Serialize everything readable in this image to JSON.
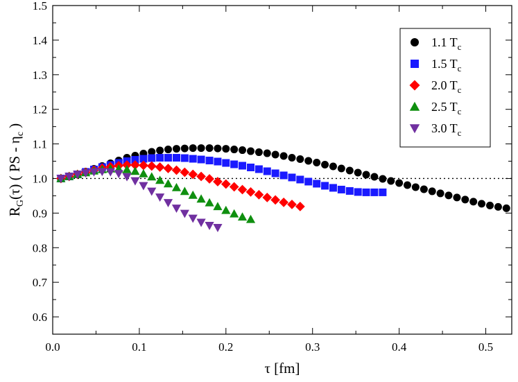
{
  "chart_data": {
    "type": "scatter",
    "title": "",
    "xlabel": "τ [fm]",
    "ylabel_parts": {
      "base": "R",
      "base_sub": "G",
      "mid": "(τ) ( PS - η",
      "mid_sub": "c",
      "end": " )"
    },
    "xlim": [
      0.0,
      0.53
    ],
    "ylim": [
      0.55,
      1.5
    ],
    "xticks": [
      0.0,
      0.1,
      0.2,
      0.3,
      0.4,
      0.5
    ],
    "xtick_labels": [
      "0.0",
      "0.1",
      "0.2",
      "0.3",
      "0.4",
      "0.5"
    ],
    "yticks": [
      0.6,
      0.7,
      0.8,
      0.9,
      1.0,
      1.1,
      1.2,
      1.3,
      1.4,
      1.5
    ],
    "ytick_labels": [
      "0.6",
      "0.7",
      "0.8",
      "0.9",
      "1.0",
      "1.1",
      "1.2",
      "1.3",
      "1.4",
      "1.5"
    ],
    "reference_line": {
      "y": 1.0,
      "style": "dotted"
    },
    "grid": false,
    "legend_position": "top-right",
    "series": [
      {
        "name": "1.1 T",
        "name_sub": "c",
        "marker": "circle",
        "color": "#000000",
        "x": [
          0.0095,
          0.019,
          0.0286,
          0.0381,
          0.0476,
          0.0571,
          0.0667,
          0.0762,
          0.0857,
          0.0952,
          0.1048,
          0.1143,
          0.1238,
          0.1333,
          0.1429,
          0.1524,
          0.1619,
          0.1714,
          0.181,
          0.1905,
          0.2,
          0.2095,
          0.219,
          0.2286,
          0.2381,
          0.2476,
          0.2571,
          0.2667,
          0.2762,
          0.2857,
          0.2952,
          0.3048,
          0.3143,
          0.3238,
          0.3333,
          0.3429,
          0.3524,
          0.3619,
          0.3714,
          0.381,
          0.3905,
          0.4,
          0.4095,
          0.419,
          0.4286,
          0.4381,
          0.4476,
          0.4571,
          0.4667,
          0.4762,
          0.4857,
          0.4952,
          0.5048,
          0.5143,
          0.5238
        ],
        "y": [
          1.0,
          1.006,
          1.012,
          1.02,
          1.028,
          1.036,
          1.044,
          1.052,
          1.06,
          1.066,
          1.072,
          1.077,
          1.081,
          1.084,
          1.086,
          1.087,
          1.088,
          1.088,
          1.088,
          1.087,
          1.086,
          1.084,
          1.082,
          1.079,
          1.076,
          1.073,
          1.069,
          1.065,
          1.06,
          1.056,
          1.051,
          1.046,
          1.04,
          1.035,
          1.029,
          1.023,
          1.017,
          1.011,
          1.005,
          0.999,
          0.993,
          0.987,
          0.981,
          0.975,
          0.969,
          0.963,
          0.957,
          0.951,
          0.945,
          0.939,
          0.933,
          0.927,
          0.922,
          0.918,
          0.914
        ]
      },
      {
        "name": "1.5 T",
        "name_sub": "c",
        "marker": "square",
        "color": "#1a1aff",
        "x": [
          0.0095,
          0.019,
          0.0286,
          0.0381,
          0.0476,
          0.0571,
          0.0667,
          0.0762,
          0.0857,
          0.0952,
          0.1048,
          0.1143,
          0.1238,
          0.1333,
          0.1429,
          0.1524,
          0.1619,
          0.1714,
          0.181,
          0.1905,
          0.2,
          0.2095,
          0.219,
          0.2286,
          0.2381,
          0.2476,
          0.2571,
          0.2667,
          0.2762,
          0.2857,
          0.2952,
          0.3048,
          0.3143,
          0.3238,
          0.3333,
          0.3429,
          0.3524,
          0.3619,
          0.3714,
          0.381
        ],
        "y": [
          1.0,
          1.006,
          1.012,
          1.019,
          1.026,
          1.033,
          1.039,
          1.045,
          1.05,
          1.054,
          1.057,
          1.059,
          1.06,
          1.06,
          1.06,
          1.059,
          1.057,
          1.055,
          1.052,
          1.049,
          1.045,
          1.041,
          1.037,
          1.032,
          1.027,
          1.021,
          1.015,
          1.009,
          1.003,
          0.997,
          0.991,
          0.985,
          0.979,
          0.973,
          0.968,
          0.964,
          0.961,
          0.96,
          0.96,
          0.96
        ]
      },
      {
        "name": "2.0 T",
        "name_sub": "c",
        "marker": "diamond",
        "color": "#ff0000",
        "x": [
          0.0095,
          0.019,
          0.0286,
          0.0381,
          0.0476,
          0.0571,
          0.0667,
          0.0762,
          0.0857,
          0.0952,
          0.1048,
          0.1143,
          0.1238,
          0.1333,
          0.1429,
          0.1524,
          0.1619,
          0.1714,
          0.181,
          0.1905,
          0.2,
          0.2095,
          0.219,
          0.2286,
          0.2381,
          0.2476,
          0.2571,
          0.2667,
          0.2762,
          0.2857
        ],
        "y": [
          1.0,
          1.006,
          1.012,
          1.018,
          1.024,
          1.03,
          1.034,
          1.037,
          1.039,
          1.039,
          1.038,
          1.036,
          1.033,
          1.029,
          1.024,
          1.018,
          1.012,
          1.006,
          0.999,
          0.991,
          0.984,
          0.976,
          0.968,
          0.961,
          0.953,
          0.945,
          0.938,
          0.931,
          0.925,
          0.919
        ]
      },
      {
        "name": "2.5 T",
        "name_sub": "c",
        "marker": "triangle-up",
        "color": "#0f8f0f",
        "x": [
          0.0095,
          0.019,
          0.0286,
          0.0381,
          0.0476,
          0.0571,
          0.0667,
          0.0762,
          0.0857,
          0.0952,
          0.1048,
          0.1143,
          0.1238,
          0.1333,
          0.1429,
          0.1524,
          0.1619,
          0.1714,
          0.181,
          0.1905,
          0.2,
          0.2095,
          0.219,
          0.2286
        ],
        "y": [
          1.0,
          1.006,
          1.012,
          1.017,
          1.022,
          1.026,
          1.028,
          1.028,
          1.026,
          1.021,
          1.014,
          1.005,
          0.995,
          0.985,
          0.974,
          0.963,
          0.952,
          0.941,
          0.93,
          0.919,
          0.908,
          0.898,
          0.889,
          0.882
        ]
      },
      {
        "name": "3.0 T",
        "name_sub": "c",
        "marker": "triangle-down",
        "color": "#7030a0",
        "x": [
          0.0095,
          0.019,
          0.0286,
          0.0381,
          0.0476,
          0.0571,
          0.0667,
          0.0762,
          0.0857,
          0.0952,
          0.1048,
          0.1143,
          0.1238,
          0.1333,
          0.1429,
          0.1524,
          0.1619,
          0.1714,
          0.181,
          0.1905
        ],
        "y": [
          1.0,
          1.006,
          1.012,
          1.016,
          1.019,
          1.02,
          1.019,
          1.014,
          1.005,
          0.993,
          0.979,
          0.963,
          0.946,
          0.93,
          0.914,
          0.899,
          0.885,
          0.873,
          0.864,
          0.858
        ]
      }
    ]
  }
}
